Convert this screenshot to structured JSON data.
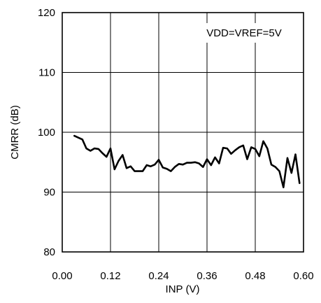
{
  "chart_data": {
    "type": "line",
    "xlabel": "INP (V)",
    "ylabel": "CMRR (dB)",
    "xlim": [
      0,
      0.6
    ],
    "ylim": [
      80,
      120
    ],
    "xticks": [
      "0.00",
      "0.12",
      "0.24",
      "0.36",
      "0.48",
      "0.60"
    ],
    "yticks": [
      "80",
      "90",
      "100",
      "110",
      "120"
    ],
    "annotation": "VDD=VREF=5V",
    "grid": true,
    "series": [
      {
        "color": "#000000",
        "x": [
          0.03,
          0.04,
          0.05,
          0.06,
          0.07,
          0.08,
          0.09,
          0.1,
          0.11,
          0.12,
          0.13,
          0.14,
          0.15,
          0.16,
          0.17,
          0.18,
          0.19,
          0.2,
          0.21,
          0.22,
          0.23,
          0.24,
          0.25,
          0.26,
          0.27,
          0.28,
          0.29,
          0.3,
          0.31,
          0.32,
          0.33,
          0.34,
          0.35,
          0.36,
          0.37,
          0.38,
          0.39,
          0.4,
          0.41,
          0.42,
          0.43,
          0.44,
          0.45,
          0.46,
          0.47,
          0.48,
          0.49,
          0.5,
          0.51,
          0.52,
          0.53,
          0.54,
          0.55,
          0.56,
          0.57,
          0.58,
          0.59
        ],
        "y": [
          99.4,
          99.1,
          98.8,
          97.3,
          96.9,
          97.3,
          97.2,
          96.5,
          95.9,
          97.3,
          93.8,
          95.2,
          96.2,
          94.0,
          94.3,
          93.5,
          93.5,
          93.5,
          94.5,
          94.3,
          94.6,
          95.4,
          94.1,
          93.9,
          93.5,
          94.2,
          94.7,
          94.6,
          94.9,
          94.9,
          95.0,
          94.8,
          94.2,
          95.5,
          94.5,
          95.8,
          94.8,
          97.4,
          97.3,
          96.4,
          97.0,
          97.5,
          97.8,
          95.5,
          97.5,
          97.2,
          96.0,
          98.5,
          97.3,
          94.6,
          94.2,
          93.5,
          90.8,
          95.7,
          93.2,
          96.3,
          91.5
        ]
      }
    ]
  }
}
